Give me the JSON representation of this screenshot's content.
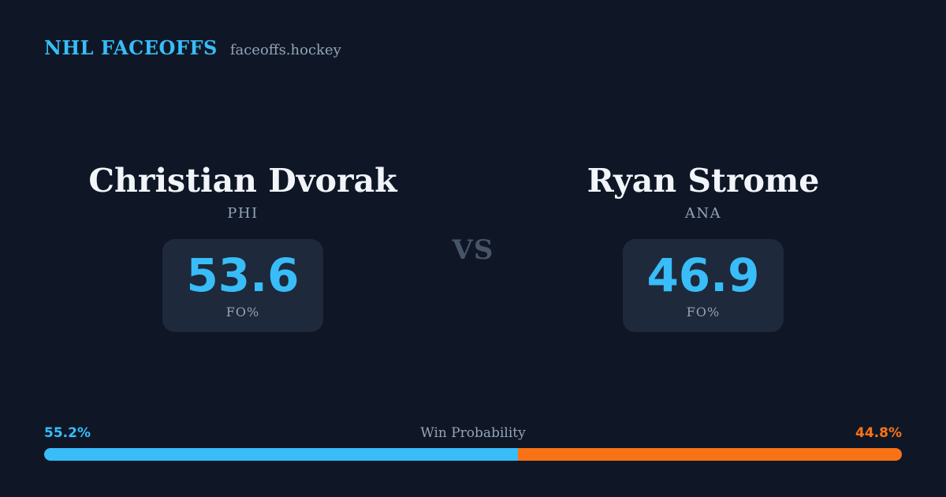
{
  "header": {
    "brand": "NHL FACEOFFS",
    "site": "faceoffs.hockey"
  },
  "matchup": {
    "vs_label": "VS",
    "players": [
      {
        "name": "Christian Dvorak",
        "team": "PHI",
        "stat_value": "53.6",
        "stat_label": "FO%"
      },
      {
        "name": "Ryan Strome",
        "team": "ANA",
        "stat_value": "46.9",
        "stat_label": "FO%"
      }
    ]
  },
  "win_probability": {
    "label": "Win Probability",
    "left_pct_label": "55.2%",
    "right_pct_label": "44.8%",
    "left_value": 55.2,
    "right_value": 44.8
  },
  "colors": {
    "background": "#0f1726",
    "card_bg": "#1e293b",
    "accent_blue": "#38bdf8",
    "accent_orange": "#f97316",
    "text_primary": "#f1f5f9",
    "text_muted": "#94a3b8",
    "vs_text": "#475569"
  }
}
